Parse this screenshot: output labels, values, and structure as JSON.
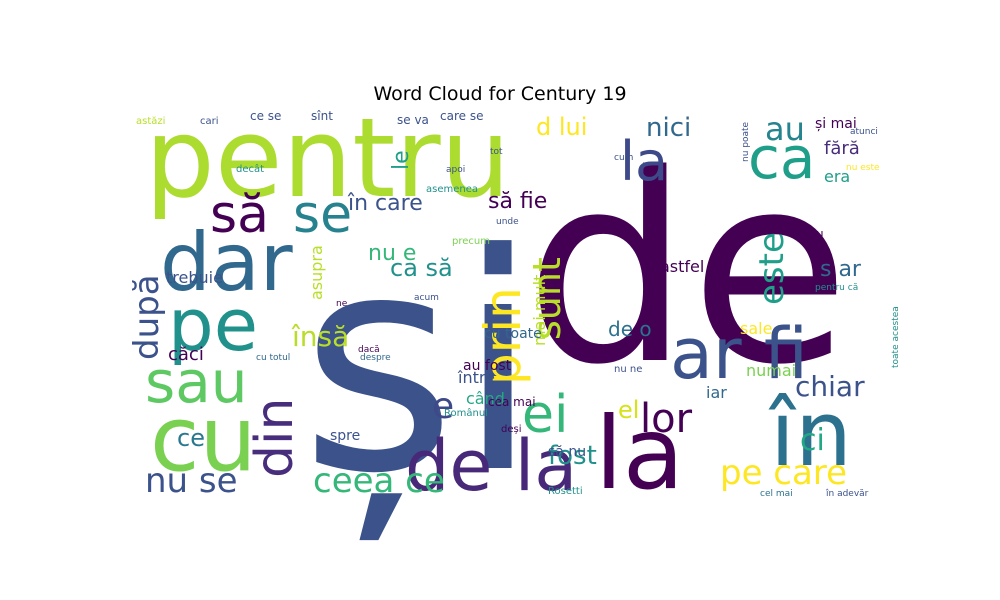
{
  "figure": {
    "title": "Word Cloud for Century 19"
  },
  "chart_data": {
    "type": "wordcloud",
    "title": "Word Cloud for Century 19",
    "background": "#ffffff",
    "colormap": "viridis",
    "words": [
      {
        "text": "și",
        "weight": 1.0,
        "color": "#3b528b"
      },
      {
        "text": "de",
        "weight": 0.95,
        "color": "#440154"
      },
      {
        "text": "pentru",
        "weight": 0.75,
        "color": "#addc30"
      },
      {
        "text": "dar",
        "weight": 0.55,
        "color": "#31688e"
      },
      {
        "text": "cu",
        "weight": 0.55,
        "color": "#7ad151"
      },
      {
        "text": "în",
        "weight": 0.55,
        "color": "#2c728e"
      },
      {
        "text": "la",
        "weight": 0.55,
        "color": "#440154"
      },
      {
        "text": "ar fi",
        "weight": 0.55,
        "color": "#3b528b"
      },
      {
        "text": "pe",
        "weight": 0.5,
        "color": "#21918c"
      },
      {
        "text": "sau",
        "weight": 0.4,
        "color": "#5ec962"
      },
      {
        "text": "ca",
        "weight": 0.4,
        "color": "#1f9e89"
      },
      {
        "text": "de la",
        "weight": 0.4,
        "color": "#482878"
      },
      {
        "text": "să",
        "weight": 0.35,
        "color": "#440154"
      },
      {
        "text": "se",
        "weight": 0.35,
        "color": "#26828e"
      },
      {
        "text": "la",
        "weight": 0.35,
        "color": "#3e4989"
      },
      {
        "text": "din",
        "weight": 0.3,
        "color": "#472d7b"
      },
      {
        "text": "ei",
        "weight": 0.3,
        "color": "#35b779"
      },
      {
        "text": "prin",
        "weight": 0.3,
        "color": "#fde725"
      },
      {
        "text": "sunt",
        "weight": 0.28,
        "color": "#b8de29"
      },
      {
        "text": "ceea ce",
        "weight": 0.28,
        "color": "#35b779"
      },
      {
        "text": "nu se",
        "weight": 0.28,
        "color": "#3b528b"
      },
      {
        "text": "după",
        "weight": 0.28,
        "color": "#3b528b"
      },
      {
        "text": "este",
        "weight": 0.28,
        "color": "#1f9e89"
      },
      {
        "text": "lor",
        "weight": 0.28,
        "color": "#440154"
      },
      {
        "text": "pe care",
        "weight": 0.25,
        "color": "#fde725"
      },
      {
        "text": "nici",
        "weight": 0.22,
        "color": "#31688e"
      },
      {
        "text": "au",
        "weight": 0.22,
        "color": "#25848e"
      },
      {
        "text": "d lui",
        "weight": 0.2,
        "color": "#fde725"
      },
      {
        "text": "în care",
        "weight": 0.2,
        "color": "#3b528b"
      },
      {
        "text": "să fie",
        "weight": 0.2,
        "color": "#440154"
      },
      {
        "text": "însă",
        "weight": 0.22,
        "color": "#b8de29"
      },
      {
        "text": "chiar",
        "weight": 0.2,
        "color": "#3b528b"
      },
      {
        "text": "fost",
        "weight": 0.2,
        "color": "#21918c"
      },
      {
        "text": "ci",
        "weight": 0.2,
        "color": "#22a884"
      },
      {
        "text": "el",
        "weight": 0.22,
        "color": "#d8e219"
      },
      {
        "text": "e",
        "weight": 0.2,
        "color": "#3e4989"
      },
      {
        "text": "ce",
        "weight": 0.18,
        "color": "#2a788e"
      },
      {
        "text": "ca să",
        "weight": 0.18,
        "color": "#21918c"
      },
      {
        "text": "nu e",
        "weight": 0.16,
        "color": "#35b779"
      },
      {
        "text": "s ar",
        "weight": 0.16,
        "color": "#31688e"
      },
      {
        "text": "fără",
        "weight": 0.14,
        "color": "#472d7b"
      },
      {
        "text": "era",
        "weight": 0.14,
        "color": "#1f9e89"
      },
      {
        "text": "numai",
        "weight": 0.14,
        "color": "#7ad151"
      },
      {
        "text": "mai mult",
        "weight": 0.14,
        "color": "#b8de29"
      },
      {
        "text": "trebuie",
        "weight": 0.12,
        "color": "#3b528b"
      },
      {
        "text": "căci",
        "weight": 0.14,
        "color": "#440154"
      },
      {
        "text": "asupra",
        "weight": 0.12,
        "color": "#b8de29"
      },
      {
        "text": "astfel",
        "weight": 0.12,
        "color": "#440154"
      },
      {
        "text": "de o",
        "weight": 0.12,
        "color": "#2c728e"
      },
      {
        "text": "sale",
        "weight": 0.12,
        "color": "#fde725"
      },
      {
        "text": "și mai",
        "weight": 0.1,
        "color": "#440154"
      },
      {
        "text": "și cu",
        "weight": 0.1,
        "color": "#440154"
      },
      {
        "text": "între",
        "weight": 0.1,
        "color": "#3b528b"
      },
      {
        "text": "când",
        "weight": 0.1,
        "color": "#22a884"
      },
      {
        "text": "le",
        "weight": 0.14,
        "color": "#1f9e89"
      },
      {
        "text": "iar",
        "weight": 0.1,
        "color": "#31688e"
      },
      {
        "text": "cea mai",
        "weight": 0.1,
        "color": "#440154"
      },
      {
        "text": "spre",
        "weight": 0.1,
        "color": "#3b528b"
      },
      {
        "text": "să nu",
        "weight": 0.1,
        "color": "#3b528b"
      },
      {
        "text": "au fost",
        "weight": 0.1,
        "color": "#440154"
      },
      {
        "text": "cu toate",
        "weight": 0.1,
        "color": "#31688e"
      },
      {
        "text": "ce se",
        "weight": 0.08,
        "color": "#3b528b"
      },
      {
        "text": "se va",
        "weight": 0.08,
        "color": "#3b528b"
      },
      {
        "text": "care se",
        "weight": 0.08,
        "color": "#3b528b"
      },
      {
        "text": "sînt",
        "weight": 0.08,
        "color": "#3b528b"
      },
      {
        "text": "astăzi",
        "weight": 0.06,
        "color": "#b8de29"
      },
      {
        "text": "cari",
        "weight": 0.06,
        "color": "#3b528b"
      },
      {
        "text": "decât",
        "weight": 0.07,
        "color": "#21918c"
      },
      {
        "text": "deși",
        "weight": 0.07,
        "color": "#440154"
      },
      {
        "text": "precum",
        "weight": 0.07,
        "color": "#7ad151"
      },
      {
        "text": "asemenea",
        "weight": 0.07,
        "color": "#21918c"
      },
      {
        "text": "nu ne",
        "weight": 0.07,
        "color": "#3b528b"
      },
      {
        "text": "Românul",
        "weight": 0.07,
        "color": "#21918c"
      },
      {
        "text": "Rosetti",
        "weight": 0.07,
        "color": "#21918c"
      },
      {
        "text": "cel mai",
        "weight": 0.06,
        "color": "#2c728e"
      },
      {
        "text": "în adevăr",
        "weight": 0.06,
        "color": "#3b528b"
      },
      {
        "text": "pentru că",
        "weight": 0.06,
        "color": "#21918c"
      },
      {
        "text": "ne",
        "weight": 0.06,
        "color": "#440154"
      },
      {
        "text": "dacă",
        "weight": 0.06,
        "color": "#440154"
      },
      {
        "text": "despre",
        "weight": 0.06,
        "color": "#31688e"
      },
      {
        "text": "cu totul",
        "weight": 0.06,
        "color": "#31688e"
      },
      {
        "text": "cum",
        "weight": 0.05,
        "color": "#3b528b"
      },
      {
        "text": "apoi",
        "weight": 0.05,
        "color": "#3b528b"
      },
      {
        "text": "tot",
        "weight": 0.05,
        "color": "#3b528b"
      },
      {
        "text": "unde",
        "weight": 0.05,
        "color": "#3b528b"
      },
      {
        "text": "acum",
        "weight": 0.05,
        "color": "#3b528b"
      },
      {
        "text": "nu este",
        "weight": 0.05,
        "color": "#fde725"
      },
      {
        "text": "nu poate",
        "weight": 0.05,
        "color": "#3b528b"
      },
      {
        "text": "atunci",
        "weight": 0.05,
        "color": "#3b528b"
      },
      {
        "text": "toate acestea",
        "weight": 0.05,
        "color": "#21918c"
      }
    ]
  }
}
